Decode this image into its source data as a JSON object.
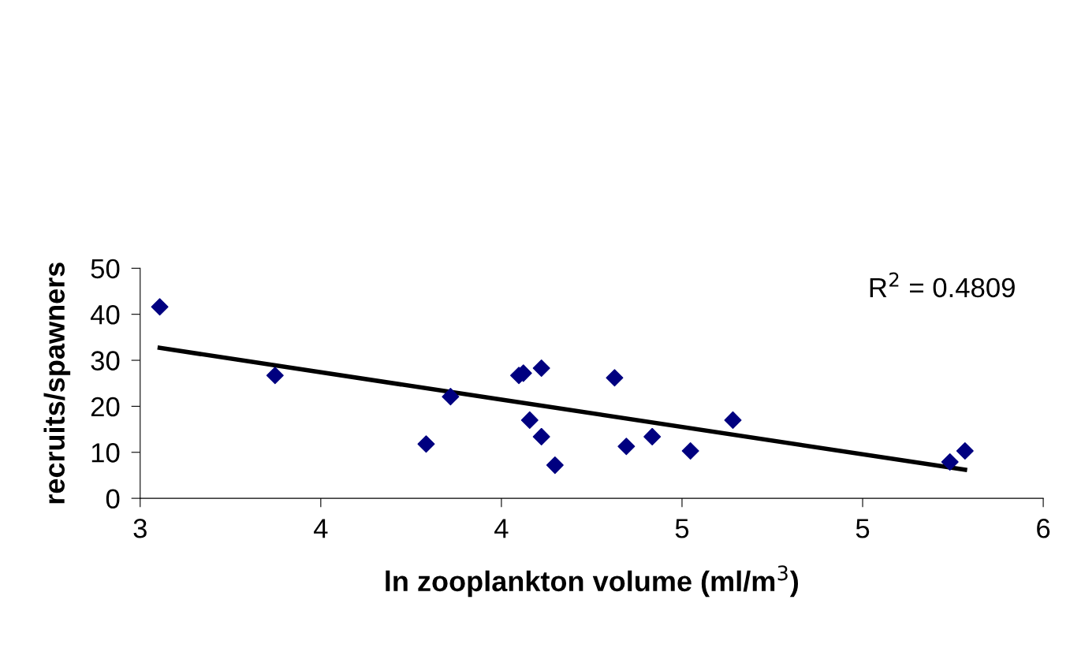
{
  "chart_data": {
    "type": "scatter",
    "xlabel": "ln zooplankton volume (ml/m$^{3}$)",
    "ylabel": "recruits/spawners",
    "xlim": [
      3,
      6
    ],
    "xticks": [
      {
        "value": 3,
        "label": "3"
      },
      {
        "value": 3.6,
        "label": "4"
      },
      {
        "value": 4.2,
        "label": "4"
      },
      {
        "value": 4.8,
        "label": "5"
      },
      {
        "value": 5.4,
        "label": "5"
      },
      {
        "value": 6,
        "label": "6"
      }
    ],
    "ylim": [
      0,
      50
    ],
    "yticks": [
      0,
      10,
      20,
      30,
      40,
      50
    ],
    "grid": false,
    "legend": false,
    "marker": "diamond",
    "series": [
      {
        "color": "#000080",
        "x": [
          3.065,
          3.448,
          3.95,
          4.031,
          4.258,
          4.273,
          4.333,
          4.294,
          4.333,
          4.378,
          4.576,
          4.615,
          4.701,
          4.828,
          4.969,
          5.69,
          5.74
        ],
        "values": [
          41.6,
          26.7,
          11.8,
          22.1,
          26.7,
          27.2,
          28.3,
          17.0,
          13.4,
          7.2,
          26.2,
          11.3,
          13.4,
          10.3,
          17.0,
          7.9,
          10.3
        ]
      },
      {
        "type": "line",
        "color": "#000000",
        "x": [
          3.065,
          5.74
        ],
        "values": [
          32.7,
          6.2
        ],
        "marker": "none",
        "line_style": "solid"
      }
    ],
    "annotations": [
      "R$^{2}$ = 0.4809"
    ]
  }
}
